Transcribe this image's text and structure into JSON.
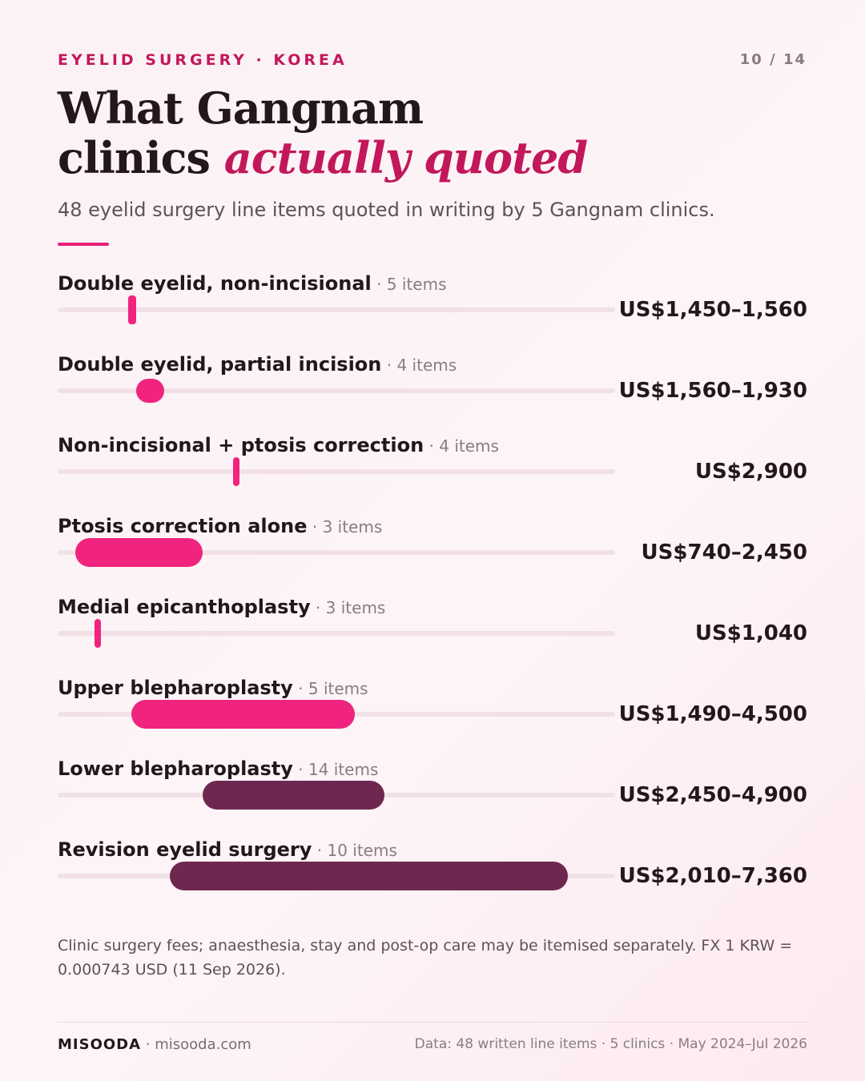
{
  "header": {
    "eyebrow": "EYELID SURGERY · KOREA",
    "page_indicator": "10 / 14",
    "title_line1": "What Gangnam",
    "title_line2_plain": "clinics ",
    "title_line2_accent": "actually quoted",
    "subtitle": "48 eyelid surgery line items quoted in writing by 5 Gangnam clinics."
  },
  "colors": {
    "accent": "#c2185b",
    "bar_pink": "#f0247e",
    "bar_plum": "#6e2850",
    "track": "#f1e1e7"
  },
  "chart_data": {
    "type": "bar",
    "orientation": "horizontal-range",
    "currency": "USD",
    "xlim": [
      500,
      8000
    ],
    "categories": [
      "Double eyelid, non-incisional",
      "Double eyelid, partial incision",
      "Non-incisional + ptosis correction",
      "Ptosis correction alone",
      "Medial epicanthoplasty",
      "Upper blepharoplasty",
      "Lower blepharoplasty",
      "Revision eyelid surgery"
    ],
    "series": [
      {
        "values": [
          {
            "category": "Double eyelid, non-incisional",
            "count_label": "· 5 items",
            "min": 1450,
            "max": 1560,
            "label": "US$1,450–1,560",
            "color": "#f0247e"
          },
          {
            "category": "Double eyelid, partial incision",
            "count_label": "· 4 items",
            "min": 1560,
            "max": 1930,
            "label": "US$1,560–1,930",
            "color": "#f0247e"
          },
          {
            "category": "Non-incisional + ptosis correction",
            "count_label": "· 4 items",
            "min": 2900,
            "max": 2900,
            "label": "US$2,900",
            "color": "#f0247e"
          },
          {
            "category": "Ptosis correction alone",
            "count_label": "· 3 items",
            "min": 740,
            "max": 2450,
            "label": "US$740–2,450",
            "color": "#f0247e"
          },
          {
            "category": "Medial epicanthoplasty",
            "count_label": "· 3 items",
            "min": 1040,
            "max": 1040,
            "label": "US$1,040",
            "color": "#f0247e"
          },
          {
            "category": "Upper blepharoplasty",
            "count_label": "· 5 items",
            "min": 1490,
            "max": 4500,
            "label": "US$1,490–4,500",
            "color": "#f0247e"
          },
          {
            "category": "Lower blepharoplasty",
            "count_label": "· 14 items",
            "min": 2450,
            "max": 4900,
            "label": "US$2,450–4,900",
            "color": "#6e2850"
          },
          {
            "category": "Revision eyelid surgery",
            "count_label": "· 10 items",
            "min": 2010,
            "max": 7360,
            "label": "US$2,010–7,360",
            "color": "#6e2850"
          }
        ]
      }
    ],
    "grid": false,
    "legend": "none"
  },
  "footnote": "Clinic surgery fees; anaesthesia, stay and post-op care may be itemised separately. FX 1 KRW = 0.000743 USD (11 Sep 2026).",
  "footer": {
    "brand_name": "MISOODA",
    "brand_url": " · misooda.com",
    "source": "Data: 48 written line items · 5 clinics · May 2024–Jul 2026"
  }
}
